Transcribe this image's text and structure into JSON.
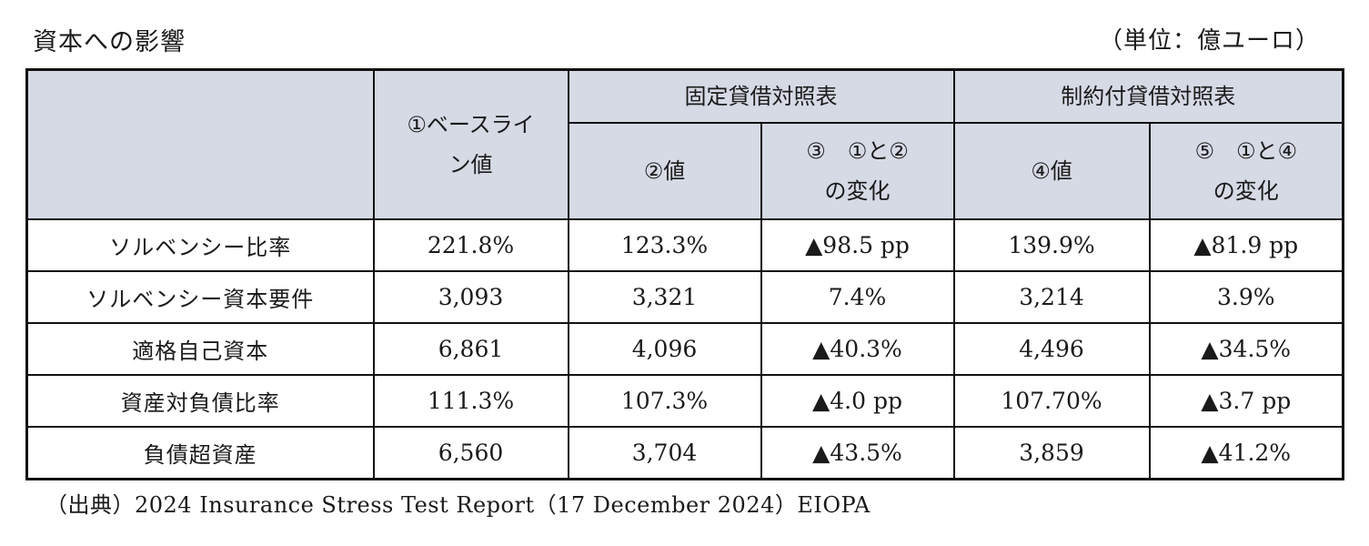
{
  "title": "資本への影響",
  "unit": "（単位：億ユーロ）",
  "header": {
    "baseline_line1": "①ベースライ",
    "baseline_line2": "ン値",
    "fixed_bs": "固定貸借対照表",
    "constrained_bs": "制約付貸借対照表",
    "col2": "②値",
    "col3_line1": "③　①と②",
    "col3_line2": "の変化",
    "col4": "④値",
    "col5_line1": "⑤　①と④",
    "col5_line2": "の変化"
  },
  "rows": [
    {
      "label": "ソルベンシー比率",
      "c1": "221.8%",
      "c2": "123.3%",
      "c3": "▲98.5 pp",
      "c4": "139.9%",
      "c5": "▲81.9 pp"
    },
    {
      "label": "ソルベンシー資本要件",
      "c1": "3,093",
      "c2": "3,321",
      "c3": "7.4%",
      "c4": "3,214",
      "c5": "3.9%"
    },
    {
      "label": "適格自己資本",
      "c1": "6,861",
      "c2": "4,096",
      "c3": "▲40.3%",
      "c4": "4,496",
      "c5": "▲34.5%"
    },
    {
      "label": "資産対負債比率",
      "c1": "111.3%",
      "c2": "107.3%",
      "c3": "▲4.0 pp",
      "c4": "107.70%",
      "c5": "▲3.7 pp"
    },
    {
      "label": "負債超資産",
      "c1": "6,560",
      "c2": "3,704",
      "c3": "▲43.5%",
      "c4": "3,859",
      "c5": "▲41.2%"
    }
  ],
  "source": {
    "prefix": "（出典）",
    "text": "2024 Insurance Stress Test Report（17 December 2024）EIOPA"
  },
  "colors": {
    "header_bg": "#d5dae5",
    "border": "#111111"
  }
}
